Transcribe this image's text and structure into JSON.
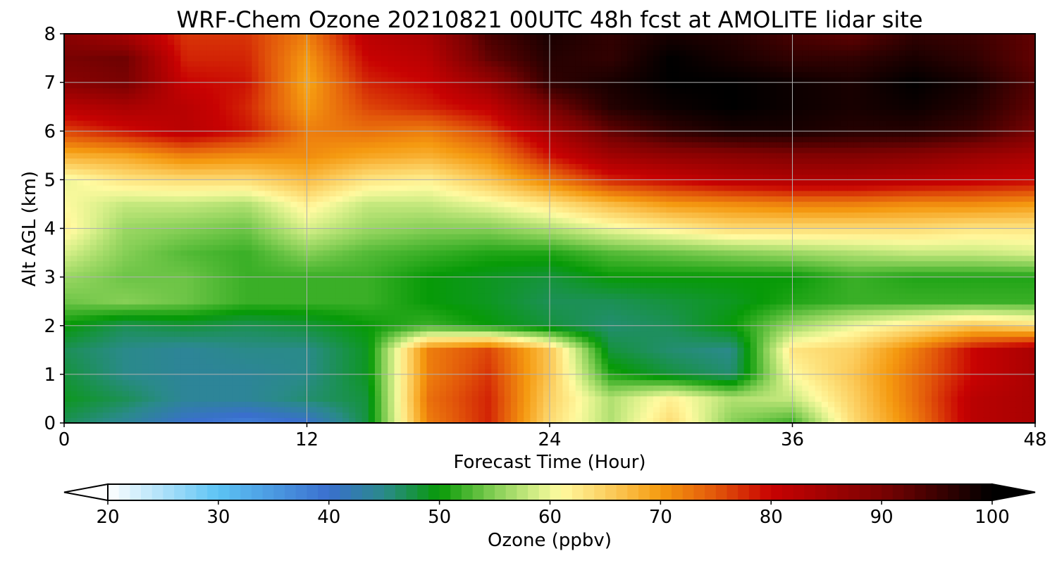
{
  "chart_data": {
    "type": "heatmap",
    "title": "WRF-Chem Ozone  20210821 00UTC 48h fcst at AMOLITE lidar site",
    "xlabel": "Forecast Time (Hour)",
    "ylabel": "Alt AGL (km)",
    "xlim": [
      0,
      48
    ],
    "ylim": [
      0,
      8
    ],
    "xticks": [
      0,
      12,
      24,
      36,
      48
    ],
    "yticks": [
      0,
      1,
      2,
      3,
      4,
      5,
      6,
      7,
      8
    ],
    "grid": true,
    "x": [
      0,
      3,
      6,
      9,
      12,
      15,
      18,
      21,
      24,
      27,
      30,
      33,
      36,
      39,
      42,
      45,
      48
    ],
    "y": [
      0,
      0.5,
      1,
      1.5,
      2,
      2.5,
      3,
      3.5,
      4,
      4.5,
      5,
      5.5,
      6,
      6.5,
      7,
      7.5,
      8
    ],
    "z": [
      [
        47,
        44,
        40,
        38,
        40,
        48,
        72,
        78,
        64,
        57,
        64,
        55,
        52,
        64,
        72,
        82,
        84
      ],
      [
        49,
        47,
        44,
        44,
        46,
        48,
        73,
        78,
        65,
        57,
        62,
        57,
        58,
        65,
        73,
        82,
        84
      ],
      [
        48,
        45,
        44,
        44,
        45,
        49,
        72,
        77,
        66,
        51,
        48,
        46,
        61,
        66,
        73,
        80,
        84
      ],
      [
        47,
        45,
        44,
        45,
        45,
        49,
        72,
        76,
        66,
        48,
        46,
        45,
        63,
        65,
        72,
        80,
        84
      ],
      [
        50,
        47,
        48,
        47,
        48,
        50,
        52,
        50,
        48,
        46,
        47,
        50,
        56,
        60,
        63,
        66,
        64
      ],
      [
        54,
        55,
        54,
        52,
        52,
        52,
        50,
        49,
        47,
        47,
        48,
        49,
        51,
        52,
        52,
        52,
        52
      ],
      [
        56,
        54,
        54,
        52,
        52,
        52,
        50,
        49,
        48,
        50,
        50,
        50,
        50,
        52,
        51,
        51,
        51
      ],
      [
        59,
        55,
        53,
        52,
        55,
        53,
        52,
        51,
        51,
        53,
        54,
        55,
        56,
        57,
        58,
        58,
        59
      ],
      [
        62,
        56,
        55,
        54,
        59,
        56,
        55,
        55,
        57,
        60,
        62,
        64,
        64,
        64,
        64,
        63,
        63
      ],
      [
        61,
        58,
        58,
        57,
        62,
        58,
        58,
        60,
        63,
        67,
        70,
        71,
        72,
        72,
        71,
        71,
        70
      ],
      [
        60,
        63,
        64,
        64,
        67,
        63,
        62,
        66,
        72,
        78,
        80,
        82,
        83,
        83,
        82,
        81,
        80
      ],
      [
        68,
        69,
        72,
        71,
        71,
        69,
        68,
        71,
        79,
        85,
        87,
        88,
        89,
        89,
        88,
        86,
        84
      ],
      [
        76,
        79,
        82,
        79,
        72,
        73,
        72,
        76,
        84,
        92,
        96,
        98,
        98,
        97,
        97,
        95,
        90
      ],
      [
        82,
        84,
        82,
        78,
        70,
        76,
        78,
        81,
        90,
        97,
        99,
        100,
        99,
        98,
        99,
        97,
        92
      ],
      [
        88,
        90,
        80,
        79,
        69,
        78,
        80,
        86,
        96,
        98,
        100,
        100,
        99,
        98,
        100,
        98,
        93
      ],
      [
        90,
        91,
        78,
        78,
        70,
        80,
        82,
        92,
        97,
        96,
        100,
        98,
        96,
        96,
        98,
        96,
        92
      ],
      [
        88,
        84,
        77,
        77,
        72,
        82,
        84,
        94,
        98,
        96,
        98,
        97,
        94,
        92,
        96,
        95,
        92
      ]
    ],
    "colorbar": {
      "label": "Ozone  (ppbv)",
      "min": 20,
      "max": 100,
      "ticks": [
        20,
        30,
        40,
        50,
        60,
        70,
        80,
        90,
        100
      ],
      "extend": "both",
      "colors": [
        {
          "v": 20,
          "c": "#ffffff"
        },
        {
          "v": 30,
          "c": "#5cc3f4"
        },
        {
          "v": 40,
          "c": "#3a6fce"
        },
        {
          "v": 45,
          "c": "#2a8a8a"
        },
        {
          "v": 50,
          "c": "#079a07"
        },
        {
          "v": 55,
          "c": "#86cf56"
        },
        {
          "v": 59,
          "c": "#d9f08a"
        },
        {
          "v": 61,
          "c": "#fffaa0"
        },
        {
          "v": 66,
          "c": "#fbc653"
        },
        {
          "v": 70,
          "c": "#f59a10"
        },
        {
          "v": 75,
          "c": "#e2560a"
        },
        {
          "v": 80,
          "c": "#c80202"
        },
        {
          "v": 90,
          "c": "#7a0202"
        },
        {
          "v": 100,
          "c": "#000000"
        }
      ]
    }
  }
}
